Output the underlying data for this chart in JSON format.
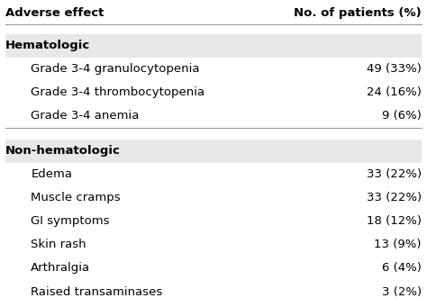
{
  "col1_header": "Adverse effect",
  "col2_header": "No. of patients (%)",
  "sections": [
    {
      "header": "Hematologic",
      "rows": [
        {
          "effect": "Grade 3-4 granulocytopenia",
          "value": "49 (33%)"
        },
        {
          "effect": "Grade 3-4 thrombocytopenia",
          "value": "24 (16%)"
        },
        {
          "effect": "Grade 3-4 anemia",
          "value": "9 (6%)"
        }
      ]
    },
    {
      "header": "Non-hematologic",
      "rows": [
        {
          "effect": "Edema",
          "value": "33 (22%)"
        },
        {
          "effect": "Muscle cramps",
          "value": "33 (22%)"
        },
        {
          "effect": "GI symptoms",
          "value": "18 (12%)"
        },
        {
          "effect": "Skin rash",
          "value": "13 (9%)"
        },
        {
          "effect": "Arthralgia",
          "value": "6 (4%)"
        },
        {
          "effect": "Raised transaminases",
          "value": "3 (2%)"
        }
      ]
    }
  ],
  "section_bg": "#e8e8e8",
  "font_size": 9.5,
  "text_color": "#000000",
  "figsize": [
    4.74,
    3.41
  ],
  "dpi": 100
}
